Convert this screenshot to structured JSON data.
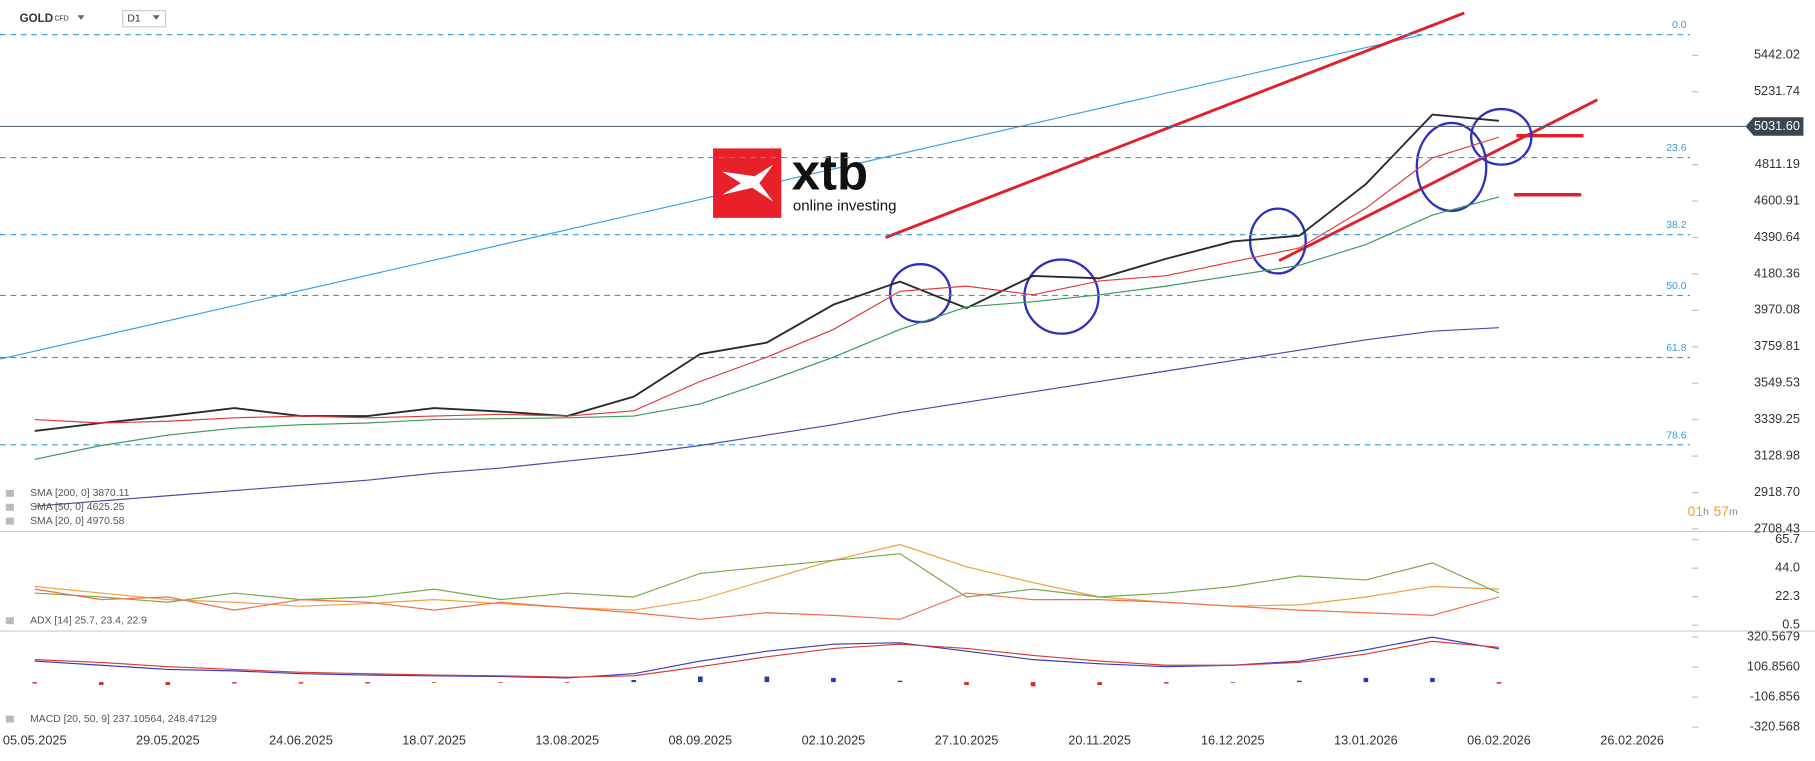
{
  "header": {
    "symbol": "GOLD",
    "instrument_type": "CFD",
    "interval": "D1"
  },
  "logo": {
    "brand": "xtb",
    "tagline": "online investing"
  },
  "timer": {
    "hours": "01",
    "hours_unit": "h",
    "minutes": "57",
    "minutes_unit": "m"
  },
  "chart_data": [
    {
      "type": "line",
      "categories": [
        "05.05.2025",
        null,
        "29.05.2025",
        null,
        "24.06.2025",
        null,
        "18.07.2025",
        null,
        "13.08.2025",
        null,
        "08.09.2025",
        null,
        "02.10.2025",
        null,
        "27.10.2025",
        null,
        "20.11.2025",
        null,
        "16.12.2025",
        null,
        "13.01.2026",
        null,
        "06.02.2026",
        null,
        "26.02.2026"
      ],
      "series": [
        {
          "color": "#2a2a2a",
          "values": [
            3274,
            3320,
            3360,
            3406,
            3360,
            3360,
            3406,
            3386,
            3360,
            3472,
            3718,
            3784,
            4003,
            4136,
            3983,
            4169,
            4155,
            4268,
            4368,
            4401,
            4699,
            5100,
            5064,
            null,
            null
          ]
        },
        {
          "name": "SMA [200, 0] 3870.11",
          "color": "#4a4aa8",
          "values": [
            2840,
            2870,
            2900,
            2930,
            2960,
            2990,
            3030,
            3060,
            3100,
            3140,
            3190,
            3250,
            3310,
            3380,
            3440,
            3500,
            3560,
            3620,
            3680,
            3740,
            3800,
            3850,
            3870,
            null,
            null
          ]
        },
        {
          "name": "SMA [50, 0] 4625.25",
          "color": "#3a9a5a",
          "values": [
            3110,
            3190,
            3250,
            3290,
            3310,
            3320,
            3340,
            3345,
            3350,
            3360,
            3430,
            3560,
            3700,
            3860,
            3990,
            4020,
            4060,
            4110,
            4170,
            4230,
            4350,
            4520,
            4625,
            null,
            null
          ]
        },
        {
          "name": "SMA [20, 0] 4970.58",
          "color": "#e03a3a",
          "values": [
            3340,
            3320,
            3330,
            3350,
            3360,
            3350,
            3360,
            3370,
            3360,
            3390,
            3560,
            3700,
            3860,
            4080,
            4110,
            4060,
            4140,
            4170,
            4250,
            4330,
            4560,
            4850,
            4970,
            null,
            null
          ]
        }
      ],
      "ylim": [
        2700,
        5760
      ],
      "yticks": [
        5442.02,
        5231.74,
        4811.19,
        4600.91,
        4390.64,
        4180.36,
        3970.08,
        3759.81,
        3549.53,
        3339.25,
        3128.98,
        {
          "value": 2918.7,
          "label": "2918.70"
        },
        2708.43
      ],
      "last_price": {
        "value": 5031.6,
        "label": "5031.60"
      },
      "fib_levels": [
        {
          "label": "0.0",
          "price": 5561
        },
        {
          "label": "23.6",
          "price": 4852
        },
        {
          "label": "38.2",
          "price": 4407
        },
        {
          "label": "50.0",
          "price": 4056
        },
        {
          "label": "61.8",
          "price": 3698
        },
        {
          "label": "78.6",
          "price": 3194
        }
      ]
    },
    {
      "type": "line",
      "legend": "ADX [14] 25.7, 23.4, 22.9",
      "series": [
        {
          "color": "#f0a040",
          "values": [
            30,
            25,
            20,
            18,
            15,
            17,
            20,
            17,
            14,
            12,
            20,
            35,
            50,
            62,
            45,
            33,
            22,
            18,
            15,
            16,
            22,
            30,
            28,
            null,
            null
          ]
        },
        {
          "color": "#7aa84a",
          "values": [
            25,
            22,
            18,
            25,
            20,
            22,
            28,
            20,
            25,
            22,
            40,
            45,
            50,
            55,
            22,
            28,
            22,
            25,
            30,
            38,
            35,
            48,
            25,
            null,
            null
          ]
        },
        {
          "color": "#f07050",
          "values": [
            28,
            20,
            22,
            12,
            20,
            18,
            12,
            18,
            14,
            10,
            5,
            10,
            8,
            5,
            25,
            20,
            20,
            18,
            15,
            12,
            10,
            8,
            22,
            null,
            null
          ]
        }
      ],
      "ylim": [
        -4,
        71
      ],
      "yticks": [
        65.7,
        {
          "value": 44,
          "label": "44.0"
        },
        22.3,
        0.5
      ]
    },
    {
      "type": "line",
      "legend": "MACD [20, 50, 9] 237.10564, 248.47129",
      "series": [
        {
          "type": "bar",
          "color": "#2a3aa8",
          "negative_color": "#d42a2a",
          "values": [
            -10,
            -20,
            -20,
            -10,
            -10,
            -10,
            -5,
            -5,
            -5,
            15,
            40,
            40,
            30,
            10,
            -20,
            -30,
            -20,
            -10,
            0,
            10,
            30,
            30,
            -11,
            null,
            null
          ]
        },
        {
          "color": "#3a3ab8",
          "values": [
            150,
            120,
            90,
            80,
            60,
            50,
            45,
            40,
            30,
            60,
            150,
            220,
            270,
            280,
            220,
            160,
            130,
            110,
            120,
            150,
            230,
            320,
            237,
            null,
            null
          ]
        },
        {
          "color": "#d83a3a",
          "values": [
            160,
            140,
            110,
            90,
            70,
            60,
            50,
            45,
            35,
            45,
            110,
            180,
            240,
            270,
            240,
            190,
            150,
            120,
            120,
            140,
            200,
            290,
            248,
            null,
            null
          ]
        }
      ],
      "ylim": [
        -337,
        363
      ],
      "yticks": [
        320.5679,
        {
          "value": 106.856,
          "label": "106.8560"
        },
        -106.856,
        -320.568
      ]
    }
  ]
}
